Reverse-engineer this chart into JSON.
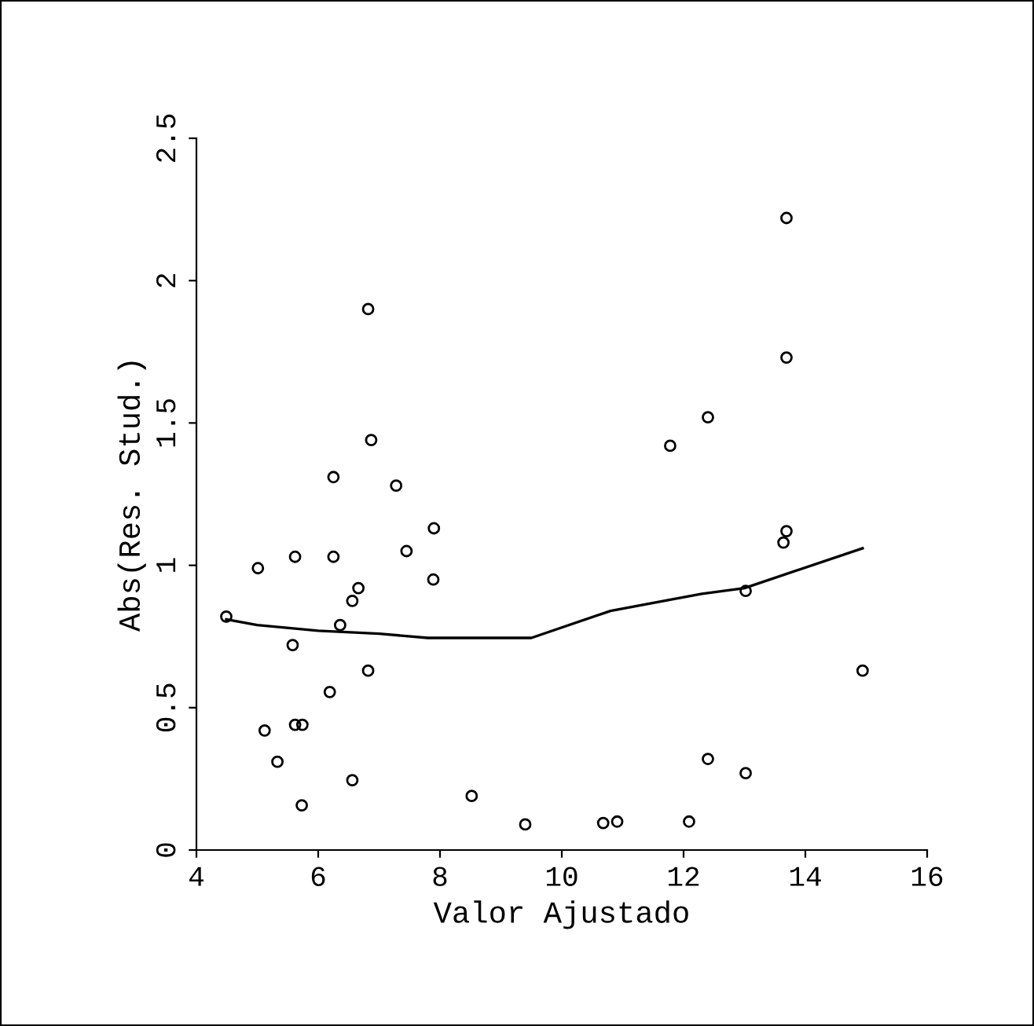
{
  "chart_data": {
    "type": "scatter",
    "xlabel": "Valor Ajustado",
    "ylabel": "Abs(Res. Stud.)",
    "xlim": [
      4,
      16
    ],
    "xticks": [
      4,
      6,
      8,
      10,
      12,
      14,
      16
    ],
    "ylim": [
      0,
      2.5
    ],
    "yticks": [
      0,
      0.5,
      1,
      1.5,
      2,
      2.5
    ],
    "grid": false,
    "legend": false,
    "series": [
      {
        "color": "#000000",
        "marker": "circle",
        "x": [
          6.82,
          6.87,
          6.25,
          7.28,
          7.9,
          7.45,
          5.62,
          6.25,
          5.01,
          7.89,
          6.66,
          6.56,
          4.49,
          6.36,
          5.58,
          6.82,
          6.19,
          5.12,
          5.62,
          5.74,
          5.33,
          6.56,
          5.73,
          8.52,
          13.69,
          13.69,
          12.4,
          11.78,
          13.69,
          13.64,
          13.02,
          14.94,
          12.4,
          13.02,
          12.09,
          9.4,
          10.68,
          10.91
        ],
        "values": [
          1.9,
          1.44,
          1.31,
          1.28,
          1.13,
          1.05,
          1.03,
          1.03,
          0.99,
          0.95,
          0.92,
          0.875,
          0.82,
          0.79,
          0.72,
          0.63,
          0.555,
          0.42,
          0.44,
          0.44,
          0.31,
          0.245,
          0.157,
          0.19,
          2.22,
          1.73,
          1.52,
          1.42,
          1.12,
          1.08,
          0.91,
          0.63,
          0.32,
          0.27,
          0.1,
          0.09,
          0.095,
          0.1
        ]
      },
      {
        "type": "line",
        "color": "#000000",
        "marker": "none",
        "line_style": "solid",
        "x": [
          4.49,
          5.0,
          6.0,
          7.0,
          7.8,
          9.5,
          10.8,
          12.3,
          13.0,
          14.94
        ],
        "values": [
          0.81,
          0.79,
          0.77,
          0.76,
          0.745,
          0.745,
          0.84,
          0.9,
          0.92,
          1.06
        ]
      }
    ]
  }
}
